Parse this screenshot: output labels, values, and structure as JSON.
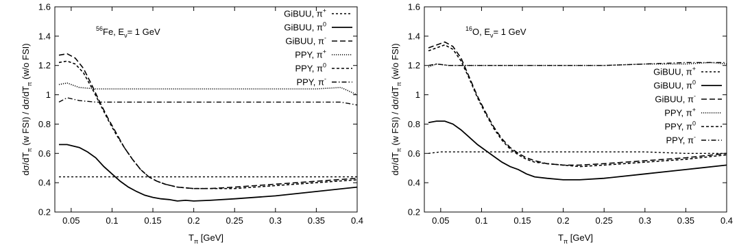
{
  "chart_data": [
    {
      "type": "line",
      "annotation": {
        "sup": "56",
        "element": "Fe, E",
        "sub": "ν",
        "rest": "= 1 GeV"
      },
      "ylabel": {
        "p1": "dσ/dT",
        "s1": "π",
        "p2": " (w FSI) / dσ/dT",
        "s2": "π",
        "p3": " (w/o FSI)"
      },
      "xlabel": {
        "main": "T",
        "sub": "π",
        "rest": " [GeV]"
      },
      "xlim": [
        0.03,
        0.4
      ],
      "ylim": [
        0.2,
        1.6
      ],
      "xticks": [
        "0.05",
        "0.1",
        "0.15",
        "0.2",
        "0.25",
        "0.3",
        "0.35",
        "0.4"
      ],
      "yticks": [
        "0.2",
        "0.4",
        "0.6",
        "0.8",
        "1",
        "1.2",
        "1.4",
        "1.6"
      ],
      "legend_position": "top-right",
      "series": [
        {
          "name": "GiBUU, π+",
          "label_main": "GiBUU, π",
          "label_sup": "+",
          "style": "dotted-coarse",
          "x": [
            0.035,
            0.05,
            0.1,
            0.2,
            0.3,
            0.35,
            0.4
          ],
          "y": [
            0.44,
            0.44,
            0.44,
            0.44,
            0.44,
            0.44,
            0.44
          ]
        },
        {
          "name": "GiBUU, π0",
          "label_main": "GiBUU, π",
          "label_sup": "0",
          "style": "solid",
          "x": [
            0.035,
            0.045,
            0.06,
            0.07,
            0.08,
            0.09,
            0.1,
            0.11,
            0.12,
            0.13,
            0.14,
            0.15,
            0.16,
            0.17,
            0.18,
            0.19,
            0.2,
            0.22,
            0.25,
            0.3,
            0.35,
            0.4
          ],
          "y": [
            0.66,
            0.66,
            0.64,
            0.61,
            0.57,
            0.51,
            0.46,
            0.41,
            0.37,
            0.34,
            0.315,
            0.3,
            0.29,
            0.285,
            0.275,
            0.28,
            0.275,
            0.28,
            0.29,
            0.31,
            0.34,
            0.37
          ]
        },
        {
          "name": "GiBUU, π-",
          "label_main": "GiBUU, π",
          "label_sup": "-",
          "style": "dashed-long",
          "x": [
            0.035,
            0.045,
            0.055,
            0.065,
            0.075,
            0.085,
            0.095,
            0.105,
            0.115,
            0.125,
            0.135,
            0.145,
            0.155,
            0.165,
            0.18,
            0.2,
            0.22,
            0.25,
            0.3,
            0.35,
            0.4
          ],
          "y": [
            1.27,
            1.28,
            1.25,
            1.18,
            1.07,
            0.95,
            0.84,
            0.74,
            0.64,
            0.56,
            0.49,
            0.44,
            0.41,
            0.39,
            0.37,
            0.36,
            0.36,
            0.37,
            0.39,
            0.41,
            0.43
          ]
        },
        {
          "name": "PPY, π+",
          "label_main": "PPY, π",
          "label_sup": "+",
          "style": "dotted-fine",
          "x": [
            0.035,
            0.045,
            0.06,
            0.08,
            0.1,
            0.15,
            0.2,
            0.25,
            0.3,
            0.35,
            0.38,
            0.4
          ],
          "y": [
            1.07,
            1.08,
            1.05,
            1.04,
            1.04,
            1.04,
            1.04,
            1.04,
            1.04,
            1.04,
            1.05,
            1.0
          ]
        },
        {
          "name": "PPY, π0",
          "label_main": "PPY, π",
          "label_sup": "0",
          "style": "dashed-short",
          "x": [
            0.035,
            0.045,
            0.055,
            0.065,
            0.075,
            0.085,
            0.095,
            0.105,
            0.115,
            0.125,
            0.135,
            0.145,
            0.155,
            0.165,
            0.18,
            0.2,
            0.22,
            0.25,
            0.3,
            0.35,
            0.4
          ],
          "y": [
            1.22,
            1.23,
            1.21,
            1.15,
            1.05,
            0.94,
            0.83,
            0.73,
            0.64,
            0.56,
            0.49,
            0.44,
            0.41,
            0.39,
            0.37,
            0.36,
            0.36,
            0.36,
            0.38,
            0.4,
            0.42
          ]
        },
        {
          "name": "PPY, π-",
          "label_main": "PPY, π",
          "label_sup": "-",
          "style": "dash-dot",
          "x": [
            0.035,
            0.045,
            0.06,
            0.08,
            0.1,
            0.15,
            0.2,
            0.25,
            0.3,
            0.35,
            0.38,
            0.4
          ],
          "y": [
            0.95,
            0.98,
            0.96,
            0.95,
            0.95,
            0.95,
            0.95,
            0.95,
            0.95,
            0.95,
            0.95,
            0.93
          ]
        }
      ]
    },
    {
      "type": "line",
      "annotation": {
        "sup": "16",
        "element": "O, E",
        "sub": "ν",
        "rest": "= 1 GeV"
      },
      "ylabel": {
        "p1": "dσ/dT",
        "s1": "π",
        "p2": " (w FSI) / dσ/dT",
        "s2": "π",
        "p3": " (w/o FSI)"
      },
      "xlabel": {
        "main": "T",
        "sub": "π",
        "rest": " [GeV]"
      },
      "xlim": [
        0.03,
        0.4
      ],
      "ylim": [
        0.2,
        1.6
      ],
      "xticks": [
        "0.05",
        "0.1",
        "0.15",
        "0.2",
        "0.25",
        "0.3",
        "0.35",
        "0.4"
      ],
      "yticks": [
        "0.2",
        "0.4",
        "0.6",
        "0.8",
        "1",
        "1.2",
        "1.4",
        "1.6"
      ],
      "legend_position": "center-right",
      "series": [
        {
          "name": "GiBUU, π+",
          "label_main": "GiBUU, π",
          "label_sup": "+",
          "style": "dotted-coarse",
          "x": [
            0.035,
            0.05,
            0.1,
            0.2,
            0.3,
            0.35,
            0.4
          ],
          "y": [
            0.6,
            0.61,
            0.61,
            0.61,
            0.61,
            0.6,
            0.6
          ]
        },
        {
          "name": "GiBUU, π0",
          "label_main": "GiBUU, π",
          "label_sup": "0",
          "style": "solid",
          "x": [
            0.035,
            0.045,
            0.055,
            0.065,
            0.075,
            0.085,
            0.095,
            0.105,
            0.115,
            0.125,
            0.135,
            0.145,
            0.155,
            0.165,
            0.18,
            0.2,
            0.22,
            0.25,
            0.3,
            0.35,
            0.4
          ],
          "y": [
            0.81,
            0.82,
            0.82,
            0.8,
            0.76,
            0.71,
            0.66,
            0.62,
            0.58,
            0.54,
            0.51,
            0.49,
            0.46,
            0.44,
            0.43,
            0.42,
            0.42,
            0.43,
            0.46,
            0.49,
            0.52
          ]
        },
        {
          "name": "GiBUU, π-",
          "label_main": "GiBUU, π",
          "label_sup": "-",
          "style": "dashed-long",
          "x": [
            0.035,
            0.045,
            0.055,
            0.065,
            0.075,
            0.085,
            0.095,
            0.105,
            0.115,
            0.125,
            0.135,
            0.145,
            0.155,
            0.165,
            0.18,
            0.2,
            0.22,
            0.25,
            0.3,
            0.35,
            0.4
          ],
          "y": [
            1.32,
            1.34,
            1.36,
            1.33,
            1.25,
            1.12,
            0.99,
            0.88,
            0.78,
            0.7,
            0.64,
            0.6,
            0.57,
            0.55,
            0.53,
            0.52,
            0.52,
            0.53,
            0.55,
            0.57,
            0.6
          ]
        },
        {
          "name": "PPY, π+",
          "label_main": "PPY, π",
          "label_sup": "+",
          "style": "dotted-fine",
          "x": [
            0.035,
            0.045,
            0.06,
            0.08,
            0.1,
            0.15,
            0.2,
            0.25,
            0.3,
            0.35,
            0.38,
            0.4
          ],
          "y": [
            1.19,
            1.21,
            1.2,
            1.2,
            1.2,
            1.2,
            1.2,
            1.2,
            1.21,
            1.21,
            1.22,
            1.21
          ]
        },
        {
          "name": "PPY, π0",
          "label_main": "PPY, π",
          "label_sup": "0",
          "style": "dashed-short",
          "x": [
            0.035,
            0.045,
            0.055,
            0.065,
            0.075,
            0.085,
            0.095,
            0.105,
            0.115,
            0.125,
            0.135,
            0.145,
            0.155,
            0.165,
            0.18,
            0.2,
            0.22,
            0.25,
            0.3,
            0.35,
            0.4
          ],
          "y": [
            1.3,
            1.32,
            1.34,
            1.31,
            1.23,
            1.11,
            0.98,
            0.87,
            0.77,
            0.69,
            0.63,
            0.59,
            0.56,
            0.54,
            0.53,
            0.52,
            0.51,
            0.52,
            0.54,
            0.56,
            0.59
          ]
        },
        {
          "name": "PPY, π-",
          "label_main": "PPY, π",
          "label_sup": "-",
          "style": "dash-dot",
          "x": [
            0.035,
            0.045,
            0.06,
            0.08,
            0.1,
            0.15,
            0.2,
            0.25,
            0.3,
            0.35,
            0.38,
            0.4
          ],
          "y": [
            1.2,
            1.21,
            1.2,
            1.2,
            1.2,
            1.2,
            1.2,
            1.2,
            1.21,
            1.22,
            1.22,
            1.22
          ]
        }
      ]
    }
  ]
}
